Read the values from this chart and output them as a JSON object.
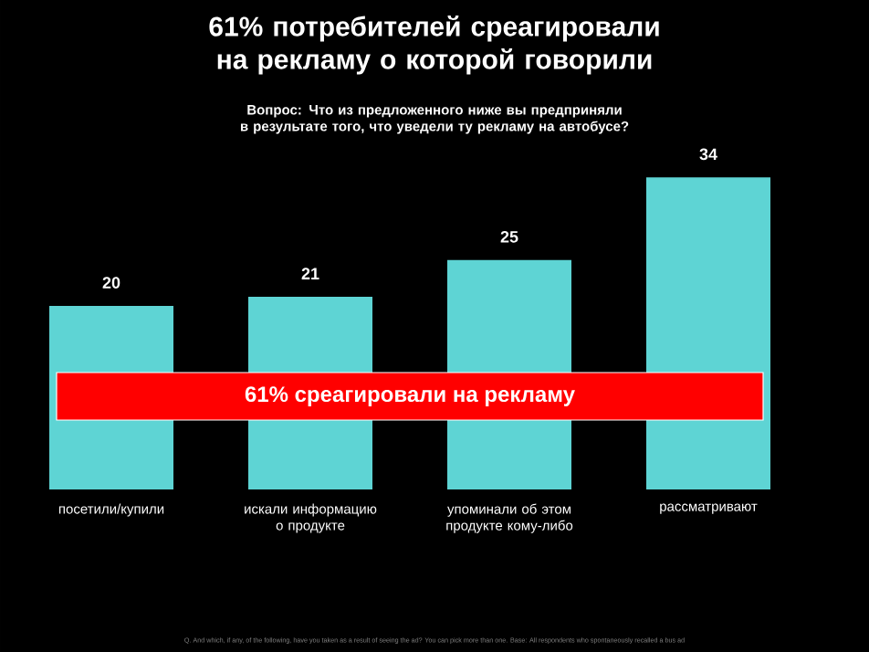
{
  "chart_data": {
    "type": "bar",
    "title": "61% потребителей среагировали на рекламу о которой говорили",
    "subtitle": "Вопрос: Что из предложенного ниже вы предприняли в результате того, что уведели ту рекламу на автобусе?",
    "categories": [
      "посетили/купили",
      "искали информацию о продукте",
      "упоминали об этом продукте кому-либо",
      "рассматривают"
    ],
    "values": [
      20,
      21,
      25,
      34
    ],
    "color": "#5ed4d4",
    "data_labels": true,
    "annotations": [
      "61% среагировали на рекламу",
      "Q. And which, if any, of the following, have you taken as a result of seeing the ad? You can pick more than one. Base: All respondents who spontaneously recalled a bus ad"
    ]
  }
}
